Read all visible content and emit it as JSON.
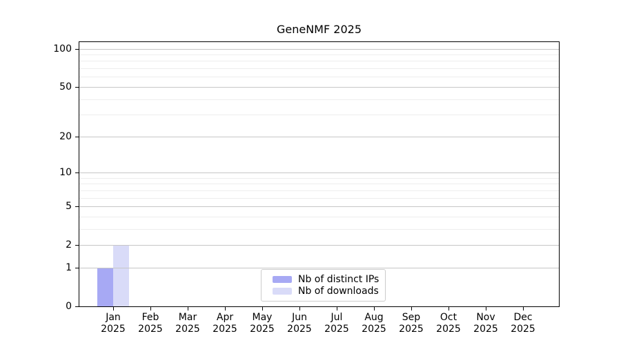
{
  "title": "GeneNMF 2025",
  "chart_data": {
    "type": "bar",
    "title": "GeneNMF 2025",
    "categories": [
      {
        "month": "Jan",
        "year": "2025"
      },
      {
        "month": "Feb",
        "year": "2025"
      },
      {
        "month": "Mar",
        "year": "2025"
      },
      {
        "month": "Apr",
        "year": "2025"
      },
      {
        "month": "May",
        "year": "2025"
      },
      {
        "month": "Jun",
        "year": "2025"
      },
      {
        "month": "Jul",
        "year": "2025"
      },
      {
        "month": "Aug",
        "year": "2025"
      },
      {
        "month": "Sep",
        "year": "2025"
      },
      {
        "month": "Oct",
        "year": "2025"
      },
      {
        "month": "Nov",
        "year": "2025"
      },
      {
        "month": "Dec",
        "year": "2025"
      }
    ],
    "series": [
      {
        "name": "Nb of distinct IPs",
        "color": "#a7a9f4",
        "values": [
          1,
          0,
          0,
          0,
          0,
          0,
          0,
          0,
          0,
          0,
          0,
          0
        ]
      },
      {
        "name": "Nb of downloads",
        "color": "#d9dbf8",
        "values": [
          2,
          0,
          0,
          0,
          0,
          0,
          0,
          0,
          0,
          0,
          0,
          0
        ]
      }
    ],
    "y_axis": {
      "scale": "log1p",
      "ticks": [
        0,
        1,
        2,
        5,
        10,
        20,
        50,
        100
      ],
      "minor_gridlines": [
        3,
        4,
        6,
        7,
        8,
        9,
        30,
        40,
        60,
        70,
        80,
        90
      ],
      "max": 115
    },
    "x_axis": {
      "label_lines": 2
    },
    "legend": {
      "position": "lower center"
    },
    "grid": true
  },
  "colors": {
    "background": "#ffffff",
    "text": "#000000",
    "spine": "#000000",
    "grid_major": "#c6c6c6",
    "grid_minor": "#ededed",
    "legend_border": "#cccccc"
  }
}
